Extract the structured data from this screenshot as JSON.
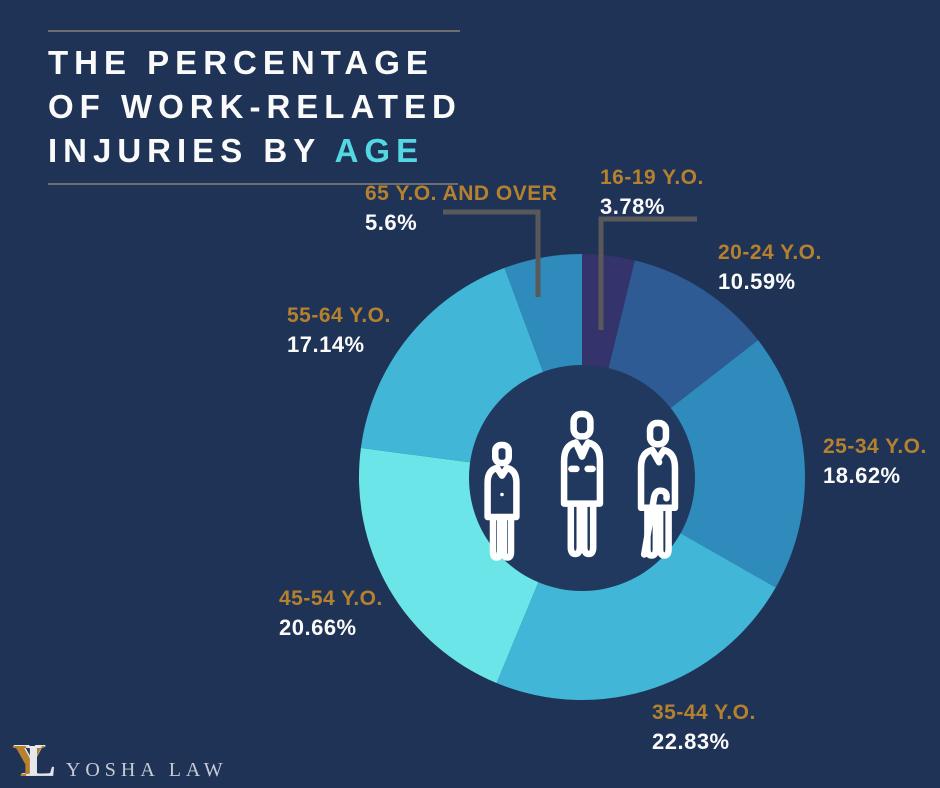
{
  "title": {
    "line1": "THE PERCENTAGE",
    "line2": "OF WORK-RELATED",
    "line3_prefix": "INJURIES BY ",
    "line3_highlight": "AGE"
  },
  "colors": {
    "background": "#1E3356",
    "title_text": "#FAFAFB",
    "title_highlight": "#54D7E3",
    "label_gold": "#B5812E",
    "percent_white": "#FBFBFC",
    "callout_line": "#59595B",
    "inner_circle": "#22395F",
    "icon_stroke": "#FFFFFF"
  },
  "chart_data": {
    "type": "pie",
    "style": "donut",
    "title": "The Percentage of Work-Related Injuries by Age",
    "start_angle_deg": 0,
    "direction": "clockwise",
    "legend_position": "callout-labels",
    "center_icon": "three-people-icon",
    "segments": [
      {
        "label": "16-19 Y.O.",
        "value": 3.78,
        "display": "3.78%",
        "color": "#34336B"
      },
      {
        "label": "20-24 Y.O.",
        "value": 10.59,
        "display": "10.59%",
        "color": "#2E5B94"
      },
      {
        "label": "25-34 Y.O.",
        "value": 18.62,
        "display": "18.62%",
        "color": "#2E8BBB"
      },
      {
        "label": "35-44 Y.O.",
        "value": 22.83,
        "display": "22.83%",
        "color": "#41B6D7"
      },
      {
        "label": "45-54 Y.O.",
        "value": 20.66,
        "display": "20.66%",
        "color": "#6CE5E8"
      },
      {
        "label": "55-64 Y.O.",
        "value": 17.14,
        "display": "17.14%",
        "color": "#41B6D7"
      },
      {
        "label": "65 Y.O. AND OVER",
        "value": 5.6,
        "display": "5.6%",
        "color": "#2E8BBB"
      }
    ]
  },
  "logo": {
    "monogram_y": "Y",
    "monogram_l": "L",
    "name": "YOSHA LAW"
  }
}
